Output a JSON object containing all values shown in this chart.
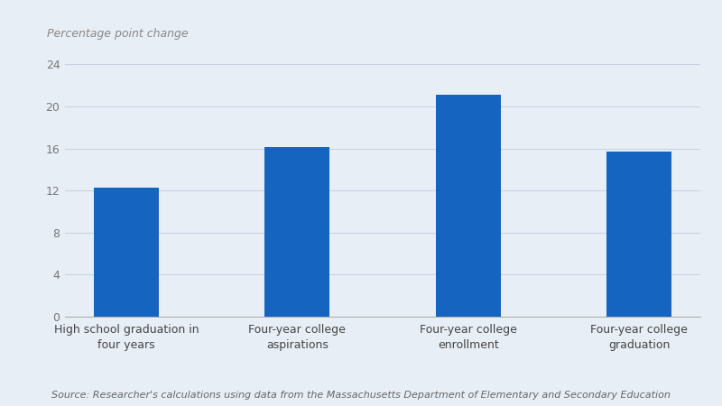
{
  "categories": [
    "High school graduation in\nfour years",
    "Four-year college\naspirations",
    "Four-year college\nenrollment",
    "Four-year college\ngraduation"
  ],
  "values": [
    12.3,
    16.1,
    21.1,
    15.7
  ],
  "bar_color": "#1565c0",
  "background_color": "#e8eef6",
  "ylabel": "Percentage point change",
  "yticks": [
    0,
    4,
    8,
    12,
    16,
    20,
    24
  ],
  "ylim": [
    0,
    25.5
  ],
  "source_text": "Source: Researcher's calculations using data from the Massachusetts Department of Elementary and Secondary Education",
  "ylabel_fontsize": 9,
  "tick_fontsize": 9,
  "source_fontsize": 8,
  "bar_width": 0.38,
  "grid_color": "#c8d4e3",
  "grid_linewidth": 0.8,
  "xtick_color": "#444444",
  "ytick_color": "#777777"
}
